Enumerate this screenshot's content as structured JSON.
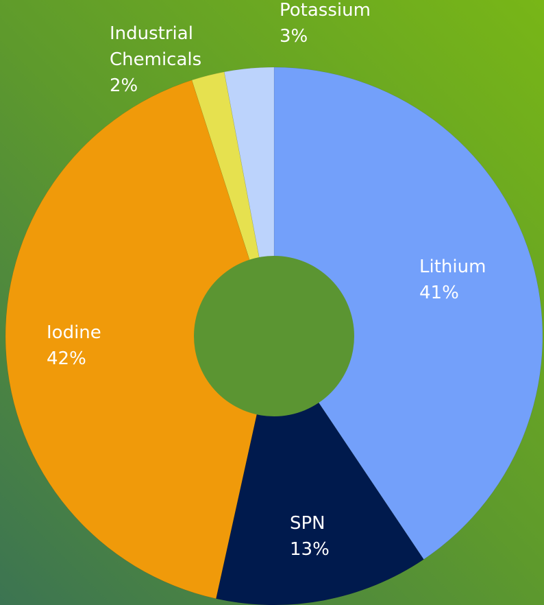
{
  "chart_data": {
    "type": "donut",
    "categories": [
      "Lithium",
      "SPN",
      "Iodine",
      "Industrial Chemicals",
      "Potassium"
    ],
    "values": [
      41,
      13,
      42,
      2,
      3
    ],
    "value_labels": [
      "41%",
      "13%",
      "42%",
      "2%",
      "3%"
    ],
    "colors": [
      "#73a0fa",
      "#001a4d",
      "#f09a0a",
      "#e6e14f",
      "#bcd3fc"
    ]
  }
}
